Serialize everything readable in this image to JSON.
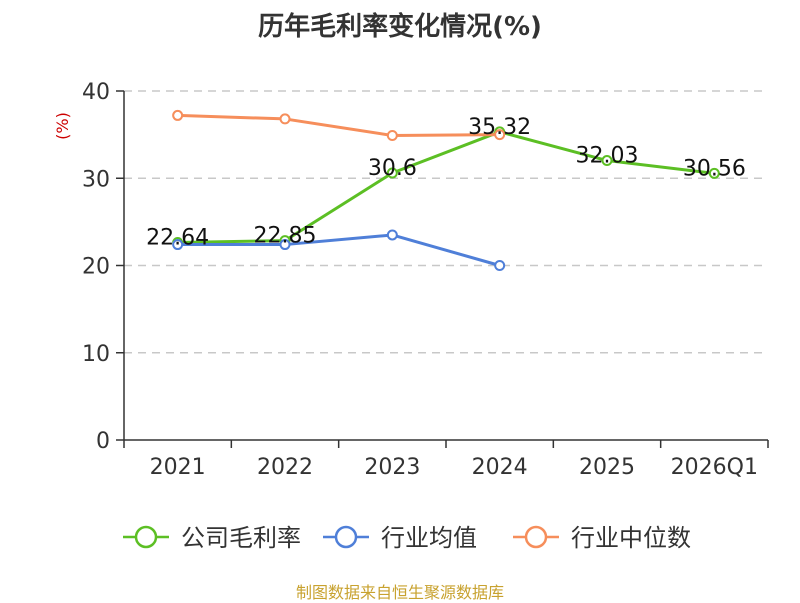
{
  "chart_data": {
    "type": "line",
    "title": "历年毛利率变化情况(%)",
    "ylabel": "(%)",
    "categories": [
      "2021",
      "2022",
      "2023",
      "2024",
      "2025",
      "2026Q1"
    ],
    "ylim": [
      0,
      40
    ],
    "yticks": [
      0,
      10,
      20,
      30,
      40
    ],
    "grid": "horizontal-dashed",
    "legend_position": "bottom",
    "series": [
      {
        "name": "公司毛利率",
        "color": "#5cbf24",
        "values": [
          22.64,
          22.85,
          30.6,
          35.32,
          32.03,
          30.56
        ],
        "labels": [
          "22.64",
          "22.85",
          "30.6",
          "35.32",
          "32.03",
          "30.56"
        ]
      },
      {
        "name": "行业均值",
        "color": "#4f7fd8",
        "values": [
          22.4,
          22.4,
          23.5,
          20.0,
          null,
          null
        ]
      },
      {
        "name": "行业中位数",
        "color": "#f68e5b",
        "values": [
          37.2,
          36.8,
          34.9,
          35.0,
          null,
          null
        ]
      }
    ]
  },
  "source": "制图数据来自恒生聚源数据库"
}
